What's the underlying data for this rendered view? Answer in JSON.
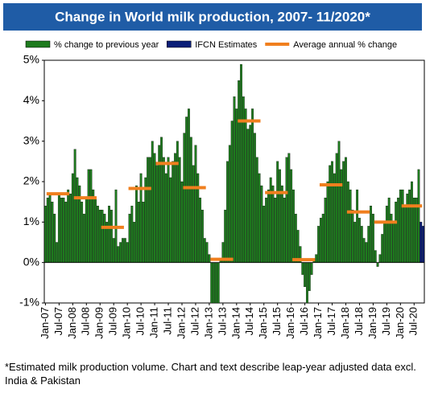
{
  "chart_data": {
    "type": "bar",
    "title": "Change in World milk production, 2007- 11/2020*",
    "footnote": "*Estimated milk production volume. Chart and text describe leap-year adjusted data excl. India & Pakistan",
    "categories": [
      "Jan-07",
      null,
      null,
      null,
      null,
      null,
      "Jul-07",
      null,
      null,
      null,
      null,
      null,
      "Jan-08",
      null,
      null,
      null,
      null,
      null,
      "Jul-08",
      null,
      null,
      null,
      null,
      null,
      "Jan-09",
      null,
      null,
      null,
      null,
      null,
      "Jul-09",
      null,
      null,
      null,
      null,
      null,
      "Jan-10",
      null,
      null,
      null,
      null,
      null,
      "Jul-10",
      null,
      null,
      null,
      null,
      null,
      "Jan-11",
      null,
      null,
      null,
      null,
      null,
      "Jul-11",
      null,
      null,
      null,
      null,
      null,
      "Jan-12",
      null,
      null,
      null,
      null,
      null,
      "Jul-12",
      null,
      null,
      null,
      null,
      null,
      "Jan-13",
      null,
      null,
      null,
      null,
      null,
      "Jul-13",
      null,
      null,
      null,
      null,
      null,
      "Jan-14",
      null,
      null,
      null,
      null,
      null,
      "Jul-14",
      null,
      null,
      null,
      null,
      null,
      "Jan-15",
      null,
      null,
      null,
      null,
      null,
      "Jul-15",
      null,
      null,
      null,
      null,
      null,
      "Jan-16",
      null,
      null,
      null,
      null,
      null,
      "Jul-16",
      null,
      null,
      null,
      null,
      null,
      "Jan-17",
      null,
      null,
      null,
      null,
      null,
      "Jul-17",
      null,
      null,
      null,
      null,
      null,
      "Jan-18",
      null,
      null,
      null,
      null,
      null,
      "Jul-18",
      null,
      null,
      null,
      null,
      null,
      "Jan-19",
      null,
      null,
      null,
      null,
      null,
      "Jul-19",
      null,
      null,
      null,
      null,
      null,
      "Jan-20",
      null,
      null,
      null,
      null,
      null,
      "Jul-20",
      null,
      null,
      null,
      null
    ],
    "series": [
      {
        "name": "% change to previous year",
        "color": "#1e7b1e",
        "values": [
          1.4,
          1.6,
          1.7,
          1.5,
          1.2,
          0.5,
          1.7,
          1.6,
          1.6,
          1.5,
          1.8,
          1.7,
          2.2,
          2.8,
          2.1,
          1.9,
          1.5,
          1.2,
          1.6,
          2.3,
          2.3,
          1.8,
          1.6,
          1.4,
          1.3,
          1.3,
          1.2,
          1.0,
          1.4,
          1.3,
          0.6,
          1.8,
          0.4,
          0.5,
          0.6,
          0.6,
          0.5,
          1.2,
          1.4,
          1.0,
          1.9,
          1.5,
          2.2,
          1.5,
          2.1,
          2.6,
          2.6,
          3.0,
          2.7,
          2.4,
          2.9,
          3.1,
          2.6,
          2.2,
          2.6,
          2.1,
          2.5,
          2.7,
          3.0,
          2.6,
          2.0,
          3.2,
          3.6,
          3.8,
          3.1,
          2.4,
          2.9,
          2.2,
          1.6,
          1.3,
          0.6,
          0.5,
          0.2,
          -1.0,
          -1.0,
          -1.0,
          -1.0,
          0.1,
          0.5,
          1.3,
          2.5,
          2.9,
          3.5,
          4.1,
          3.8,
          4.5,
          4.9,
          4.1,
          3.8,
          3.3,
          3.4,
          3.8,
          3.2,
          2.6,
          2.2,
          1.9,
          1.4,
          1.6,
          1.8,
          2.1,
          1.9,
          1.6,
          2.5,
          2.3,
          1.9,
          1.6,
          2.6,
          2.7,
          2.3,
          1.8,
          1.2,
          0.8,
          0.4,
          -0.3,
          -0.6,
          -1.0,
          -0.7,
          -0.3,
          0.1,
          0.2,
          0.9,
          1.1,
          1.2,
          1.6,
          2.0,
          2.4,
          2.5,
          2.2,
          2.7,
          3.0,
          2.3,
          2.5,
          2.6,
          2.0,
          1.8,
          1.3,
          1.0,
          1.8,
          1.1,
          0.9,
          0.6,
          0.5,
          0.9,
          1.4,
          1.2,
          0.3,
          -0.1,
          0.2,
          0.7,
          1.0,
          1.4,
          1.6,
          1.2,
          1.0,
          1.5,
          1.6,
          1.8,
          1.8,
          1.4,
          1.7,
          1.8,
          2.0,
          1.6,
          1.6,
          2.3,
          null,
          null
        ]
      },
      {
        "name": "IFCN Estimates",
        "color": "#0b1f78",
        "values": [
          null,
          null,
          null,
          null,
          null,
          null,
          null,
          null,
          null,
          null,
          null,
          null,
          null,
          null,
          null,
          null,
          null,
          null,
          null,
          null,
          null,
          null,
          null,
          null,
          null,
          null,
          null,
          null,
          null,
          null,
          null,
          null,
          null,
          null,
          null,
          null,
          null,
          null,
          null,
          null,
          null,
          null,
          null,
          null,
          null,
          null,
          null,
          null,
          null,
          null,
          null,
          null,
          null,
          null,
          null,
          null,
          null,
          null,
          null,
          null,
          null,
          null,
          null,
          null,
          null,
          null,
          null,
          null,
          null,
          null,
          null,
          null,
          null,
          null,
          null,
          null,
          null,
          null,
          null,
          null,
          null,
          null,
          null,
          null,
          null,
          null,
          null,
          null,
          null,
          null,
          null,
          null,
          null,
          null,
          null,
          null,
          null,
          null,
          null,
          null,
          null,
          null,
          null,
          null,
          null,
          null,
          null,
          null,
          null,
          null,
          null,
          null,
          null,
          null,
          null,
          null,
          null,
          null,
          null,
          null,
          null,
          null,
          null,
          null,
          null,
          null,
          null,
          null,
          null,
          null,
          null,
          null,
          null,
          null,
          null,
          null,
          null,
          null,
          null,
          null,
          null,
          null,
          null,
          null,
          null,
          null,
          null,
          null,
          null,
          null,
          null,
          null,
          null,
          null,
          null,
          null,
          null,
          null,
          null,
          null,
          null,
          null,
          null,
          null,
          null,
          1.0,
          0.9
        ]
      }
    ],
    "average": {
      "name": "Average annual % change",
      "color": "#f07f1e",
      "values": [
        1.7,
        1.6,
        0.87,
        1.83,
        2.45,
        1.85,
        0.08,
        3.5,
        1.73,
        0.07,
        1.92,
        1.25,
        1.0,
        1.4
      ]
    },
    "ylim": [
      -1,
      5
    ],
    "yticks": [
      {
        "value": -1,
        "label": "-1%"
      },
      {
        "value": 0,
        "label": "0%"
      },
      {
        "value": 1,
        "label": "1%"
      },
      {
        "value": 2,
        "label": "2%"
      },
      {
        "value": 3,
        "label": "3%"
      },
      {
        "value": 4,
        "label": "4%"
      },
      {
        "value": 5,
        "label": "5%"
      }
    ]
  }
}
